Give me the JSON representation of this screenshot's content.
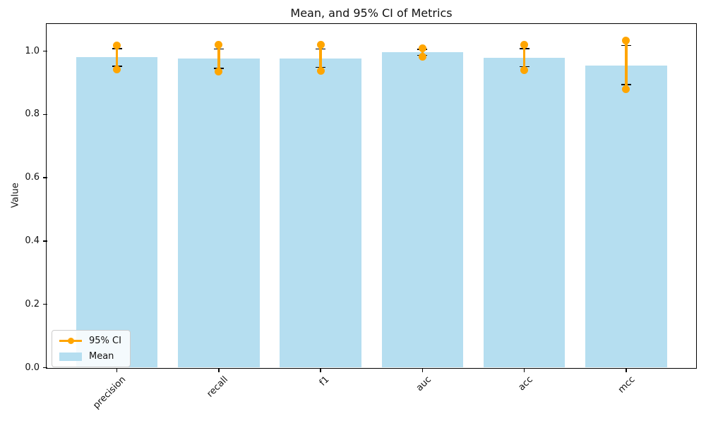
{
  "figure": {
    "background": "#ffffff"
  },
  "chart_data": {
    "type": "bar",
    "title": "Mean, and 95% CI of Metrics",
    "xlabel": "",
    "ylabel": "Value",
    "categories": [
      "precision",
      "recall",
      "f1",
      "auc",
      "acc",
      "mcc"
    ],
    "series": [
      {
        "name": "Mean",
        "values": [
          0.982,
          0.976,
          0.977,
          0.996,
          0.979,
          0.954
        ]
      }
    ],
    "ci_95": {
      "low": [
        0.943,
        0.936,
        0.938,
        0.983,
        0.94,
        0.879
      ],
      "high": [
        1.019,
        1.021,
        1.02,
        1.01,
        1.02,
        1.033
      ]
    },
    "error_caps": {
      "low": [
        0.952,
        0.946,
        0.949,
        0.987,
        0.951,
        0.895
      ],
      "high": [
        1.008,
        1.007,
        1.007,
        1.006,
        1.008,
        1.018
      ]
    },
    "yticks": [
      0.0,
      0.2,
      0.4,
      0.6,
      0.8,
      1.0
    ],
    "ylim": [
      0,
      1.086
    ],
    "xlim": [
      -0.6875,
      5.6875
    ],
    "bar_width_fraction": 0.8,
    "grid": false,
    "xtick_rotation_deg": 45,
    "legend": {
      "position": "lower left",
      "entries": [
        {
          "label": "95% CI",
          "type": "line-marker",
          "color": "#ffa500"
        },
        {
          "label": "Mean",
          "type": "patch",
          "color": "#b5def0"
        }
      ]
    },
    "colors": {
      "bar": "#b5def0",
      "ci_line": "#ffa500",
      "error_cap": "#000000",
      "spine": "#000000"
    }
  }
}
